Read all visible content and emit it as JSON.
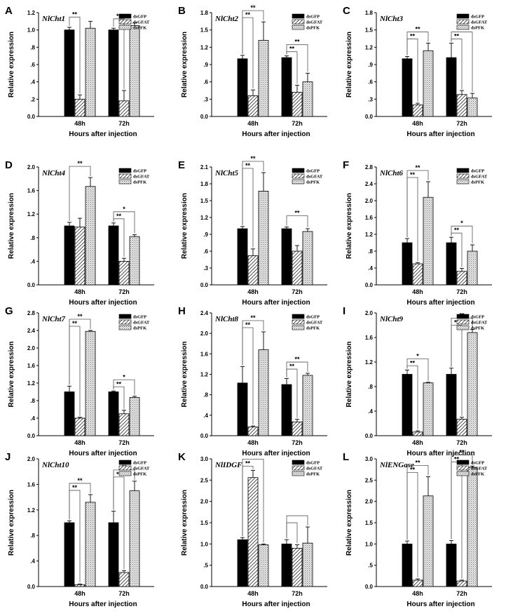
{
  "figure": {
    "xlabel": "Hours after injection",
    "ylabel": "Relative expression",
    "series_names": [
      "dsGFP",
      "dsGFAT",
      "dsPFK"
    ],
    "categories": [
      "48h",
      "72h"
    ]
  },
  "chart_data": [
    {
      "panel": "A",
      "type": "bar",
      "title": "NlCht1",
      "xlabel": "Hours after injection",
      "ylabel": "Relative expression",
      "categories": [
        "48h",
        "72h"
      ],
      "ylim": [
        0,
        1.2
      ],
      "yticks": [
        "0.0",
        ".2",
        ".4",
        ".6",
        ".8",
        "1.0",
        "1.2"
      ],
      "series": [
        {
          "name": "dsGFP",
          "values": [
            1.0,
            1.0
          ],
          "errors": [
            0.03,
            0.02
          ]
        },
        {
          "name": "dsGFAT",
          "values": [
            0.2,
            0.18
          ],
          "errors": [
            0.05,
            0.12
          ]
        },
        {
          "name": "dsPFK",
          "values": [
            1.02,
            1.05
          ],
          "errors": [
            0.08,
            0.03
          ]
        }
      ],
      "significance": [
        {
          "group": 0,
          "pair": [
            0,
            1
          ],
          "label": "**"
        },
        {
          "group": 1,
          "pair": [
            0,
            1
          ],
          "label": "**"
        }
      ]
    },
    {
      "panel": "B",
      "type": "bar",
      "title": "NlCht2",
      "xlabel": "Hours after injection",
      "ylabel": "Relative expression",
      "categories": [
        "48h",
        "72h"
      ],
      "ylim": [
        0,
        1.8
      ],
      "yticks": [
        "0.0",
        ".3",
        ".6",
        ".9",
        "1.2",
        "1.5",
        "1.8"
      ],
      "series": [
        {
          "name": "dsGFP",
          "values": [
            1.0,
            1.02
          ],
          "errors": [
            0.06,
            0.03
          ]
        },
        {
          "name": "dsGFAT",
          "values": [
            0.36,
            0.42
          ],
          "errors": [
            0.1,
            0.12
          ]
        },
        {
          "name": "dsPFK",
          "values": [
            1.32,
            0.6
          ],
          "errors": [
            0.32,
            0.15
          ]
        }
      ],
      "significance": [
        {
          "group": 0,
          "pair": [
            0,
            1
          ],
          "label": "**"
        },
        {
          "group": 0,
          "pair": [
            0,
            2
          ],
          "label": "**"
        },
        {
          "group": 1,
          "pair": [
            0,
            1
          ],
          "label": "**"
        },
        {
          "group": 1,
          "pair": [
            0,
            2
          ],
          "label": "**"
        }
      ]
    },
    {
      "panel": "C",
      "type": "bar",
      "title": "NlCht3",
      "xlabel": "Hours after injection",
      "ylabel": "Relative expression",
      "categories": [
        "48h",
        "72h"
      ],
      "ylim": [
        0,
        1.8
      ],
      "yticks": [
        "0.0",
        ".3",
        ".6",
        ".9",
        "1.2",
        "1.5",
        "1.8"
      ],
      "series": [
        {
          "name": "dsGFP",
          "values": [
            1.0,
            1.02
          ],
          "errors": [
            0.04,
            0.25
          ]
        },
        {
          "name": "dsGFAT",
          "values": [
            0.2,
            0.38
          ],
          "errors": [
            0.03,
            0.07
          ]
        },
        {
          "name": "dsPFK",
          "values": [
            1.14,
            0.32
          ],
          "errors": [
            0.13,
            0.08
          ]
        }
      ],
      "significance": [
        {
          "group": 0,
          "pair": [
            0,
            1
          ],
          "label": "**"
        },
        {
          "group": 0,
          "pair": [
            0,
            2
          ],
          "label": "**"
        },
        {
          "group": 1,
          "pair": [
            0,
            1
          ],
          "label": "**"
        },
        {
          "group": 1,
          "pair": [
            0,
            2
          ],
          "label": "**"
        }
      ]
    },
    {
      "panel": "D",
      "type": "bar",
      "title": "NlCht4",
      "xlabel": "Hours after injection",
      "ylabel": "Relative expression",
      "categories": [
        "48h",
        "72h"
      ],
      "ylim": [
        0,
        2.0
      ],
      "yticks": [
        "0.0",
        ".4",
        ".8",
        "1.2",
        "1.6",
        "2.0"
      ],
      "series": [
        {
          "name": "dsGFP",
          "values": [
            1.0,
            1.0
          ],
          "errors": [
            0.06,
            0.05
          ]
        },
        {
          "name": "dsGFAT",
          "values": [
            0.98,
            0.4
          ],
          "errors": [
            0.15,
            0.05
          ]
        },
        {
          "name": "dsPFK",
          "values": [
            1.67,
            0.82
          ],
          "errors": [
            0.15,
            0.03
          ]
        }
      ],
      "significance": [
        {
          "group": 0,
          "pair": [
            0,
            2
          ],
          "label": "**"
        },
        {
          "group": 1,
          "pair": [
            0,
            1
          ],
          "label": "**"
        },
        {
          "group": 1,
          "pair": [
            0,
            2
          ],
          "label": "*"
        }
      ]
    },
    {
      "panel": "E",
      "type": "bar",
      "title": "NlCht5",
      "xlabel": "Hours after injection",
      "ylabel": "Relative expression",
      "categories": [
        "48h",
        "72h"
      ],
      "ylim": [
        0,
        2.1
      ],
      "yticks": [
        "0.0",
        ".3",
        ".6",
        ".9",
        "1.2",
        "1.5",
        "1.8",
        "2.1"
      ],
      "series": [
        {
          "name": "dsGFP",
          "values": [
            1.0,
            1.0
          ],
          "errors": [
            0.04,
            0.03
          ]
        },
        {
          "name": "dsGFAT",
          "values": [
            0.52,
            0.6
          ],
          "errors": [
            0.12,
            0.1
          ]
        },
        {
          "name": "dsPFK",
          "values": [
            1.67,
            0.95
          ],
          "errors": [
            0.33,
            0.05
          ]
        }
      ],
      "significance": [
        {
          "group": 0,
          "pair": [
            0,
            1
          ],
          "label": "**"
        },
        {
          "group": 0,
          "pair": [
            0,
            2
          ],
          "label": "**"
        },
        {
          "group": 1,
          "pair": [
            0,
            2
          ],
          "label": "**"
        }
      ]
    },
    {
      "panel": "F",
      "type": "bar",
      "title": "NlCht6",
      "xlabel": "Hours after injection",
      "ylabel": "Relative expression",
      "categories": [
        "48h",
        "72h"
      ],
      "ylim": [
        0,
        2.8
      ],
      "yticks": [
        "0.0",
        ".4",
        ".8",
        "1.2",
        "1.6",
        "2.0",
        "2.4",
        "2.8"
      ],
      "series": [
        {
          "name": "dsGFP",
          "values": [
            1.0,
            1.0
          ],
          "errors": [
            0.1,
            0.13
          ]
        },
        {
          "name": "dsGFAT",
          "values": [
            0.5,
            0.32
          ],
          "errors": [
            0.03,
            0.07
          ]
        },
        {
          "name": "dsPFK",
          "values": [
            2.08,
            0.8
          ],
          "errors": [
            0.37,
            0.15
          ]
        }
      ],
      "significance": [
        {
          "group": 0,
          "pair": [
            0,
            1
          ],
          "label": "**"
        },
        {
          "group": 0,
          "pair": [
            0,
            2
          ],
          "label": "**"
        },
        {
          "group": 1,
          "pair": [
            0,
            1
          ],
          "label": "**"
        },
        {
          "group": 1,
          "pair": [
            0,
            2
          ],
          "label": "*"
        }
      ]
    },
    {
      "panel": "G",
      "type": "bar",
      "title": "NlCht7",
      "xlabel": "Hours after injection",
      "ylabel": "Relative expression",
      "categories": [
        "48h",
        "72h"
      ],
      "ylim": [
        0,
        2.8
      ],
      "yticks": [
        "0.0",
        ".4",
        ".8",
        "1.2",
        "1.6",
        "2.0",
        "2.4",
        "2.8"
      ],
      "series": [
        {
          "name": "dsGFP",
          "values": [
            1.0,
            1.0
          ],
          "errors": [
            0.13,
            0.02
          ]
        },
        {
          "name": "dsGFAT",
          "values": [
            0.4,
            0.5
          ],
          "errors": [
            0.02,
            0.08
          ]
        },
        {
          "name": "dsPFK",
          "values": [
            2.38,
            0.87
          ],
          "errors": [
            0.02,
            0.03
          ]
        }
      ],
      "significance": [
        {
          "group": 0,
          "pair": [
            0,
            1
          ],
          "label": "**"
        },
        {
          "group": 0,
          "pair": [
            0,
            2
          ],
          "label": "**"
        },
        {
          "group": 1,
          "pair": [
            0,
            1
          ],
          "label": "**"
        },
        {
          "group": 1,
          "pair": [
            0,
            2
          ],
          "label": "*"
        }
      ]
    },
    {
      "panel": "H",
      "type": "bar",
      "title": "NlCht8",
      "xlabel": "Hours after injection",
      "ylabel": "Relative expression",
      "categories": [
        "48h",
        "72h"
      ],
      "ylim": [
        0,
        2.4
      ],
      "yticks": [
        "0.0",
        ".4",
        ".8",
        "1.2",
        "1.6",
        "2.0",
        "2.4"
      ],
      "series": [
        {
          "name": "dsGFP",
          "values": [
            1.03,
            1.0
          ],
          "errors": [
            0.32,
            0.12
          ]
        },
        {
          "name": "dsGFAT",
          "values": [
            0.17,
            0.27
          ],
          "errors": [
            0.02,
            0.05
          ]
        },
        {
          "name": "dsPFK",
          "values": [
            1.68,
            1.18
          ],
          "errors": [
            0.35,
            0.04
          ]
        }
      ],
      "significance": [
        {
          "group": 0,
          "pair": [
            0,
            1
          ],
          "label": "**"
        },
        {
          "group": 0,
          "pair": [
            0,
            2
          ],
          "label": "**"
        },
        {
          "group": 1,
          "pair": [
            0,
            1
          ],
          "label": "**"
        },
        {
          "group": 1,
          "pair": [
            0,
            2
          ],
          "label": "**"
        }
      ]
    },
    {
      "panel": "I",
      "type": "bar",
      "title": "NlCht9",
      "xlabel": "Hours after injection",
      "ylabel": "Relative expression",
      "categories": [
        "48h",
        "72h"
      ],
      "ylim": [
        0,
        2.0
      ],
      "yticks": [
        "0.0",
        ".4",
        ".8",
        "1.2",
        "1.6",
        "2.0"
      ],
      "series": [
        {
          "name": "dsGFP",
          "values": [
            1.0,
            1.0
          ],
          "errors": [
            0.07,
            0.1
          ]
        },
        {
          "name": "dsGFAT",
          "values": [
            0.06,
            0.27
          ],
          "errors": [
            0.02,
            0.03
          ]
        },
        {
          "name": "dsPFK",
          "values": [
            0.86,
            1.68
          ],
          "errors": [
            0.01,
            0.05
          ]
        }
      ],
      "significance": [
        {
          "group": 0,
          "pair": [
            0,
            1
          ],
          "label": "**"
        },
        {
          "group": 0,
          "pair": [
            0,
            2
          ],
          "label": "*"
        },
        {
          "group": 1,
          "pair": [
            0,
            1
          ],
          "label": "**"
        },
        {
          "group": 1,
          "pair": [
            0,
            2
          ],
          "label": "**"
        }
      ]
    },
    {
      "panel": "J",
      "type": "bar",
      "title": "NlCht10",
      "xlabel": "Hours after injection",
      "ylabel": "Relative expression",
      "categories": [
        "48h",
        "72h"
      ],
      "ylim": [
        0,
        2.0
      ],
      "yticks": [
        "0.0",
        ".4",
        ".8",
        "1.2",
        "1.6",
        "2.0"
      ],
      "series": [
        {
          "name": "dsGFP",
          "values": [
            1.0,
            1.0
          ],
          "errors": [
            0.03,
            0.18
          ]
        },
        {
          "name": "dsGFAT",
          "values": [
            0.03,
            0.22
          ],
          "errors": [
            0.01,
            0.03
          ]
        },
        {
          "name": "dsPFK",
          "values": [
            1.32,
            1.5
          ],
          "errors": [
            0.12,
            0.15
          ]
        }
      ],
      "significance": [
        {
          "group": 0,
          "pair": [
            0,
            1
          ],
          "label": "**"
        },
        {
          "group": 0,
          "pair": [
            0,
            2
          ],
          "label": "**"
        },
        {
          "group": 1,
          "pair": [
            0,
            1
          ],
          "label": "**"
        },
        {
          "group": 1,
          "pair": [
            0,
            2
          ],
          "label": "**"
        }
      ]
    },
    {
      "panel": "K",
      "type": "bar",
      "title": "NlIDGF",
      "xlabel": "Hours after injection",
      "ylabel": "Relative expression",
      "categories": [
        "48h",
        "72h"
      ],
      "ylim": [
        0,
        3.0
      ],
      "yticks": [
        "0.0",
        ".5",
        "1.0",
        "1.5",
        "2.0",
        "2.5",
        "3.0"
      ],
      "series": [
        {
          "name": "dsGFP",
          "values": [
            1.1,
            1.0
          ],
          "errors": [
            0.05,
            0.1
          ]
        },
        {
          "name": "dsGFAT",
          "values": [
            2.56,
            0.9
          ],
          "errors": [
            0.17,
            0.08
          ]
        },
        {
          "name": "dsPFK",
          "values": [
            0.98,
            1.02
          ],
          "errors": [
            0.02,
            0.38
          ]
        }
      ],
      "significance": [
        {
          "group": 0,
          "pair": [
            0,
            1
          ],
          "label": "**"
        },
        {
          "group": 0,
          "pair": [
            0,
            2
          ],
          "label": ""
        },
        {
          "group": 1,
          "pair": [
            0,
            1
          ],
          "label": ""
        },
        {
          "group": 1,
          "pair": [
            0,
            2
          ],
          "label": ""
        }
      ]
    },
    {
      "panel": "L",
      "type": "bar",
      "title": "NlENGase",
      "xlabel": "Hours after injection",
      "ylabel": "Relative expression",
      "categories": [
        "48h",
        "72h"
      ],
      "ylim": [
        0,
        3.0
      ],
      "yticks": [
        "0.0",
        ".5",
        "1.0",
        "1.5",
        "2.0",
        "2.5",
        "3.0"
      ],
      "series": [
        {
          "name": "dsGFP",
          "values": [
            1.0,
            1.0
          ],
          "errors": [
            0.07,
            0.08
          ]
        },
        {
          "name": "dsGFAT",
          "values": [
            0.15,
            0.13
          ],
          "errors": [
            0.03,
            0.02
          ]
        },
        {
          "name": "dsPFK",
          "values": [
            2.13,
            2.8
          ],
          "errors": [
            0.45,
            0.03
          ]
        }
      ],
      "significance": [
        {
          "group": 0,
          "pair": [
            0,
            1
          ],
          "label": "**"
        },
        {
          "group": 0,
          "pair": [
            0,
            2
          ],
          "label": "**"
        },
        {
          "group": 1,
          "pair": [
            0,
            1
          ],
          "label": "**"
        },
        {
          "group": 1,
          "pair": [
            0,
            2
          ],
          "label": "**"
        }
      ]
    }
  ]
}
